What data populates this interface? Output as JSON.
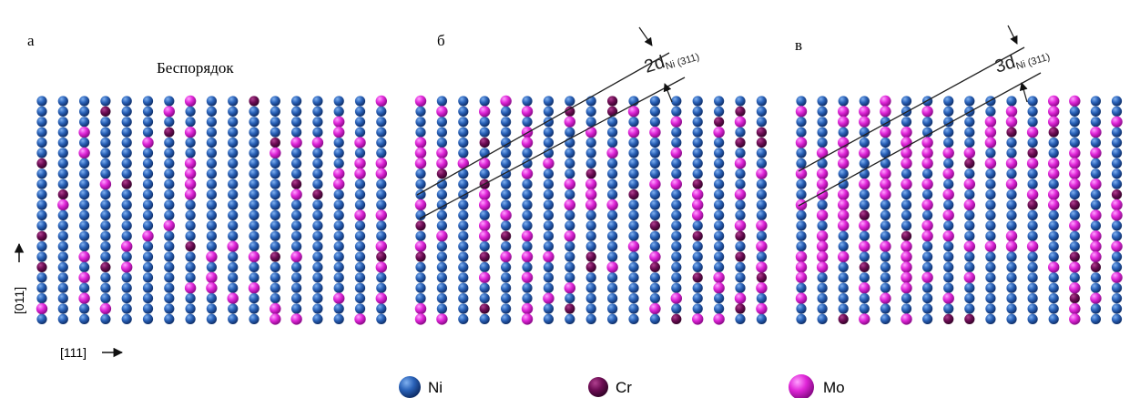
{
  "panels": [
    {
      "label": "а",
      "title": "Беспорядок"
    },
    {
      "label": "б",
      "spacing": "2d",
      "subscript": "Ni (311)"
    },
    {
      "label": "в",
      "spacing": "3d",
      "subscript": "Ni (311)"
    }
  ],
  "axes": {
    "vertical": "[011]",
    "horizontal": "[111]"
  },
  "legend": [
    "Ni",
    "Cr",
    "Mo"
  ]
}
